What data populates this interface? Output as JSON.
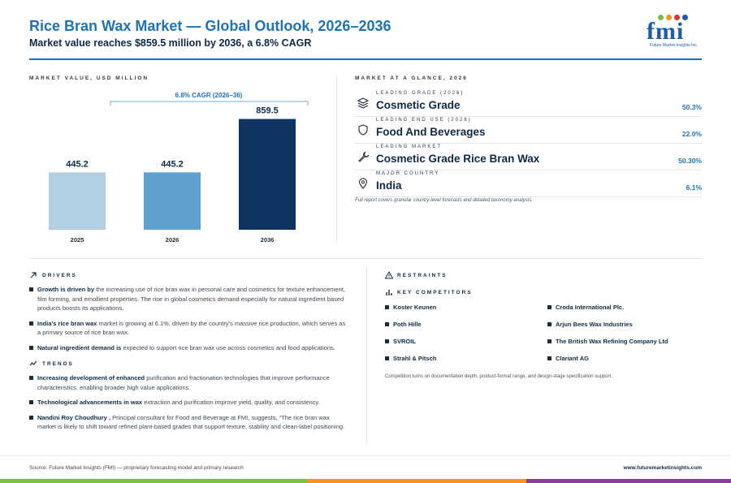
{
  "header": {
    "title": "Rice Bran Wax Market — Global Outlook, 2026–2036",
    "subtitle": "Market value reaches $859.5 million by 2036, a 6.8% CAGR"
  },
  "logo": {
    "text": "fmi",
    "tagline": "Future Market Insights Inc.",
    "dot_colors": [
      "#7ac142",
      "#f7941d",
      "#e4322b",
      "#1f5aa6"
    ]
  },
  "market_value": {
    "section_label": "MARKET VALUE, USD MILLION",
    "cagr_label": "6.8% CAGR (2026–36)"
  },
  "chart_data": {
    "type": "bar",
    "categories": [
      "2025",
      "2026",
      "2036"
    ],
    "values": [
      445.2,
      445.2,
      859.5
    ],
    "value_labels": [
      "445.2",
      "445.2",
      "859.5"
    ],
    "colors": [
      "#b3cfe4",
      "#5ea1cf",
      "#0e3461"
    ],
    "ylim": [
      0,
      900
    ],
    "grid": false,
    "title": "",
    "xlabel": "",
    "ylabel": ""
  },
  "glance": {
    "section_label": "MARKET AT A GLANCE, 2026",
    "items": [
      {
        "kicker": "LEADING GRADE (2026)",
        "name": "Cosmetic Grade",
        "value": "50.3%",
        "icon": "layers-icon"
      },
      {
        "kicker": "LEADING END USE (2026)",
        "name": "Food And Beverages",
        "value": "22.0%",
        "icon": "shield-icon"
      },
      {
        "kicker": "LEADING MARKET",
        "name": "Cosmetic Grade Rice Bran Wax",
        "value": "50.30%",
        "icon": "wrench-icon"
      },
      {
        "kicker": "MAJOR COUNTRY",
        "name": "India",
        "value": "6.1%",
        "icon": "location-pin-icon"
      }
    ],
    "note": "Full report covers granular country-level forecasts and detailed taxonomy analysis."
  },
  "drivers": {
    "label": "DRIVERS",
    "items": [
      {
        "bold": "Growth is driven by",
        "text": " the increasing use of rice bran wax in personal care and cosmetics for texture enhancement, film forming, and emollient properties. The rise in global cosmetics demand especially for natural ingredient based products boosts its applications."
      },
      {
        "bold": "India's rice bran wax",
        "text": " market is growing at 6.1%, driven by the country's massive rice production, which serves as a primary source of rice bran wax."
      },
      {
        "bold": "Natural ingredient demand is",
        "text": " expected to support rice bran wax use across cosmetics and food applications."
      }
    ]
  },
  "trends": {
    "label": "TRENDS",
    "items": [
      {
        "bold": "Increasing development of enhanced",
        "text": " purification and fractionation technologies that improve performance characteristics, enabling broader high value applications."
      },
      {
        "bold": "Technological advancements in wax",
        "text": " extraction and purification improve yield, quality, and consistency."
      },
      {
        "bold": "Nandini Roy Choudhury ,",
        "text": " Principal consultant for Food and Beverage at FMI, suggests, “The rice bran wax market is likely to shift toward refined plant-based grades that support texture, stability and clean-label positioning."
      }
    ]
  },
  "restraints": {
    "label": "RESTRAINTS"
  },
  "competitors": {
    "label": "KEY COMPETITORS",
    "items": [
      "Koster Keunen",
      "Croda International Plc.",
      "Poth Hille",
      "Arjun Bees Wax Industries",
      "SVROIL",
      "The British Wax Refining Company Ltd",
      "Strahl & Pitsch",
      "Clariant AG"
    ],
    "note": "Competition turns on documentation depth, product-format range, and design-stage specification support."
  },
  "footer": {
    "source": "Source: Future Market Insights (FMI) — proprietary forecasting model and primary research",
    "website": "www.futuremarketinsights.com",
    "bar_colors": [
      "#7ac142",
      "#f7941d",
      "#8a3f96"
    ]
  }
}
